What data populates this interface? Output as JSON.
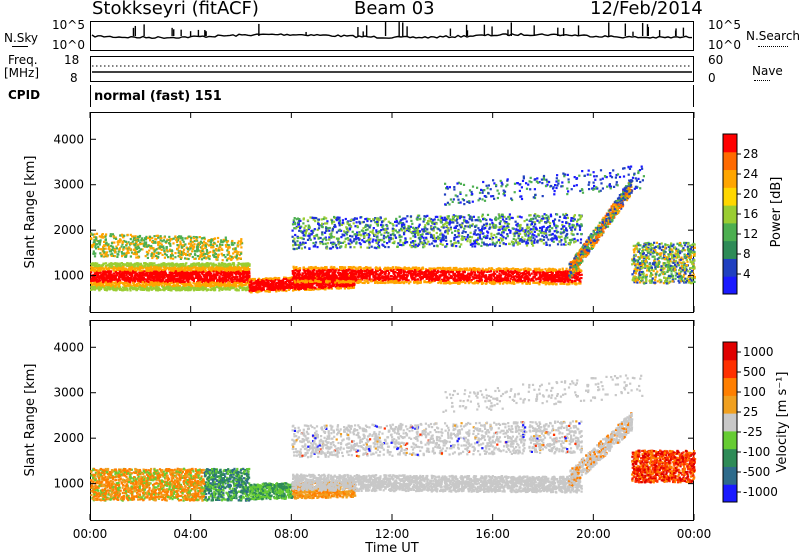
{
  "header": {
    "station": "Stokkseyri (fitACF)",
    "beam": "Beam 03",
    "date": "12/Feb/2014"
  },
  "top_panels": {
    "nsky_label": "N.Sky",
    "nsky_ticks": [
      "10^5",
      "10^0"
    ],
    "nsearch_label": "N.Search",
    "nsearch_ticks": [
      "10^5",
      "10^0"
    ],
    "freq_label_1": "Freq.",
    "freq_label_2": "[MHz]",
    "freq_ticks": [
      "18",
      "8"
    ],
    "nave_label": "Nave",
    "nave_ticks": [
      "60",
      "0"
    ],
    "cpid_label": "CPID",
    "cpid_value": "normal (fast) 151"
  },
  "chart_data": [
    {
      "type": "heatmap",
      "title": "",
      "xlabel": "Time UT",
      "ylabel": "Slant Range [km]",
      "x_ticks": [
        "00:00",
        "04:00",
        "08:00",
        "12:00",
        "16:00",
        "20:00",
        "00:00"
      ],
      "y_ticks": [
        1000,
        2000,
        3000,
        4000
      ],
      "ylim": [
        200,
        4600
      ],
      "xlim_hours": [
        0,
        24
      ],
      "colorbar_label": "Power [dB]",
      "colorbar_ticks": [
        4,
        8,
        12,
        16,
        20,
        24,
        28
      ],
      "colorbar_range": [
        0,
        32
      ],
      "colors": [
        "#1a1aff",
        "#2040c0",
        "#2e8b57",
        "#4caf50",
        "#9acd32",
        "#ffd700",
        "#ffa500",
        "#ff6a00",
        "#ff0000"
      ]
    },
    {
      "type": "heatmap",
      "title": "",
      "xlabel": "Time UT",
      "ylabel": "Slant Range [km]",
      "x_ticks": [
        "00:00",
        "04:00",
        "08:00",
        "12:00",
        "16:00",
        "20:00",
        "00:00"
      ],
      "y_ticks": [
        1000,
        2000,
        3000,
        4000
      ],
      "ylim": [
        200,
        4600
      ],
      "xlim_hours": [
        0,
        24
      ],
      "colorbar_label": "Velocity [m s⁻¹]",
      "colorbar_ticks": [
        "1000",
        "500",
        "100",
        "25",
        "-25",
        "-100",
        "-500",
        "-1000"
      ],
      "colors": [
        "#1a1aff",
        "#2e6b8b",
        "#2e8b57",
        "#66cc33",
        "#c8c8c8",
        "#f0a020",
        "#ff7f00",
        "#ff3000",
        "#e00000"
      ]
    }
  ]
}
